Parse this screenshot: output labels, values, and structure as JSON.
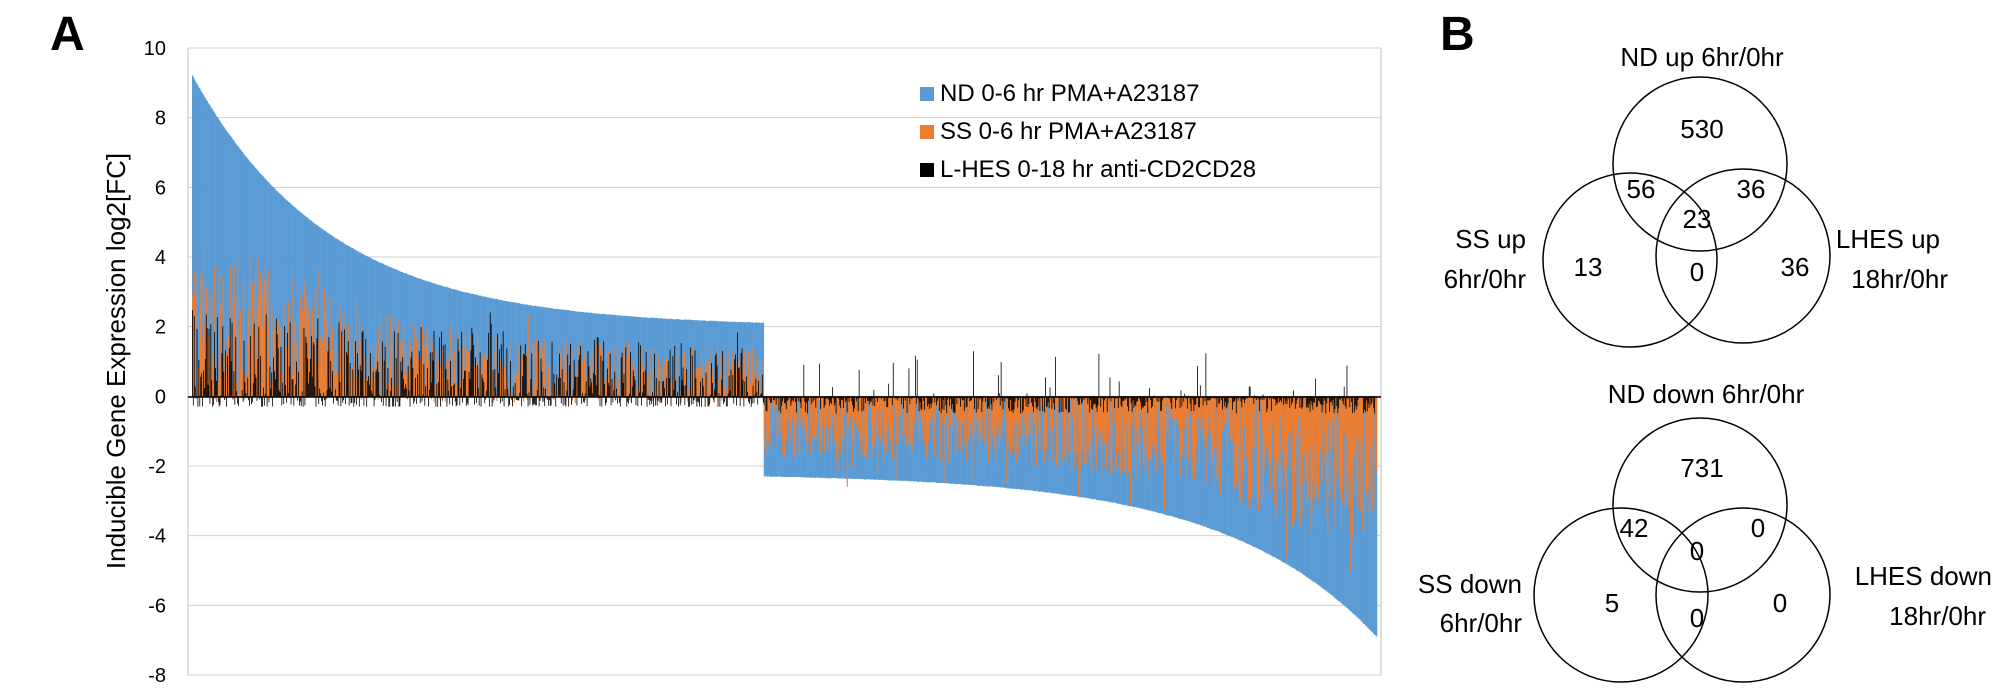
{
  "panels": {
    "a_label": "A",
    "b_label": "B"
  },
  "chart_data": {
    "type": "bar",
    "title": "",
    "xlabel": "",
    "ylabel": "Inducible Gene Expression  log2[FC]",
    "ylim": [
      -8,
      10
    ],
    "yticks": [
      "10",
      "8",
      "6",
      "4",
      "2",
      "0",
      "-2",
      "-4",
      "-6",
      "-8"
    ],
    "legend_position": "top-right",
    "gene_counts": {
      "up": 620,
      "down": 665
    },
    "series": [
      {
        "name": "ND 0-6 hr PMA+A23187",
        "color": "#5B9BD5",
        "up_profile": {
          "start": 9.2,
          "k": 4.0,
          "plateau": 2.0
        },
        "down_profile": {
          "start": -2.3,
          "end": -6.9,
          "k": 4.0
        }
      },
      {
        "name": "SS 0-6 hr PMA+A23187",
        "color": "#ED7D31",
        "up_range": [
          -0.2,
          3.0
        ],
        "down_range": [
          -4.0,
          0.0
        ]
      },
      {
        "name": "L-HES 0-18 hr anti-CD2CD28",
        "color": "#000000",
        "up_range": [
          -0.3,
          2.5
        ],
        "down_range": [
          -1.0,
          1.3
        ]
      }
    ]
  },
  "venn": {
    "up": {
      "top_label": "ND up 6hr/0hr",
      "left_label_line1": "SS up",
      "left_label_line2": "6hr/0hr",
      "right_label_line1": "LHES up",
      "right_label_line2": "18hr/0hr",
      "nd_only": "530",
      "nd_ss": "56",
      "nd_lhes": "36",
      "all_three": "23",
      "ss_only": "13",
      "ss_lhes": "0",
      "lhes_only": "36"
    },
    "down": {
      "top_label": "ND down 6hr/0hr",
      "left_label_line1": "SS down",
      "left_label_line2": "6hr/0hr",
      "right_label_line1": "LHES down",
      "right_label_line2": "18hr/0hr",
      "nd_only": "731",
      "nd_ss": "42",
      "nd_lhes": "0",
      "all_three": "0",
      "ss_only": "5",
      "ss_lhes": "0",
      "lhes_only": "0"
    }
  }
}
